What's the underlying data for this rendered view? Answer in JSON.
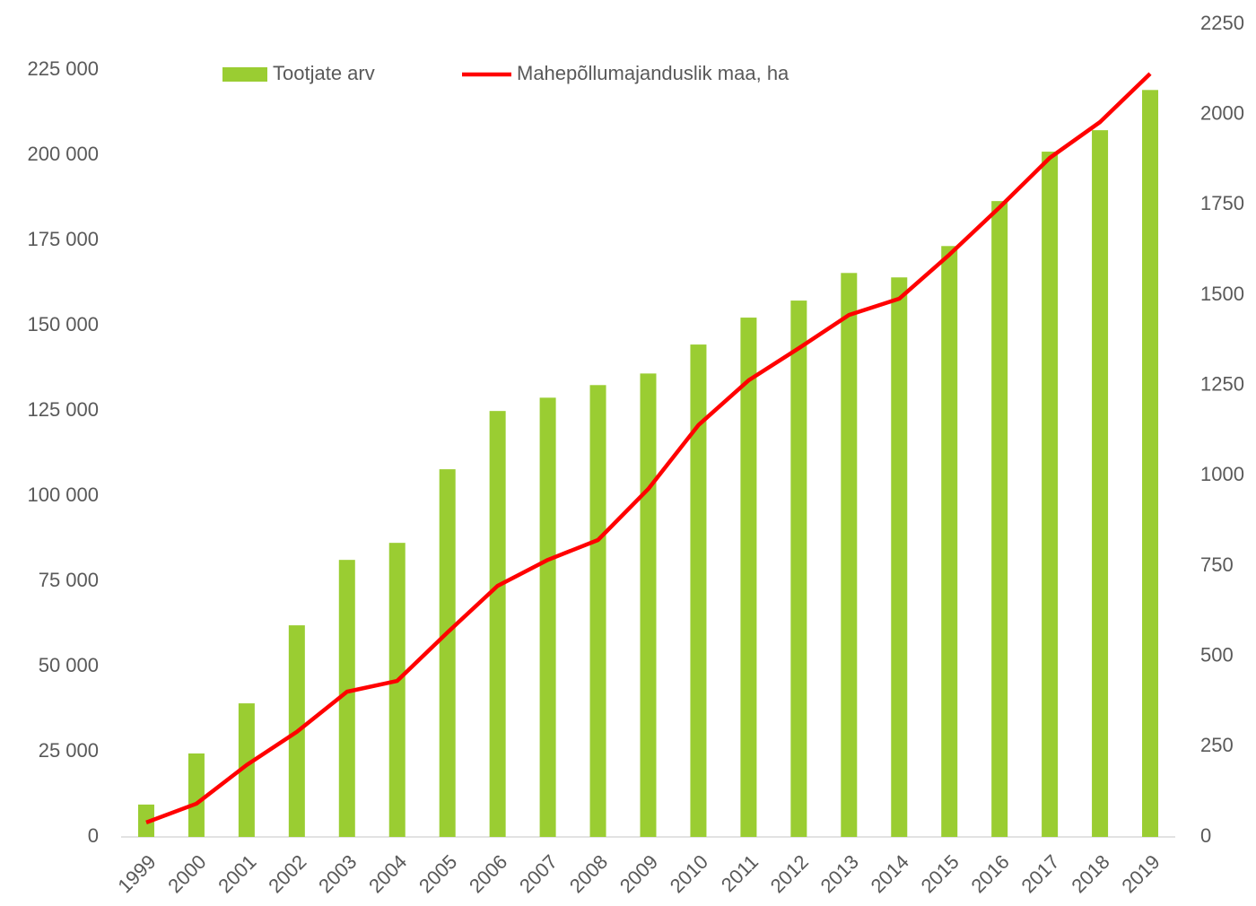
{
  "chart_data": {
    "type": "bar-line",
    "categories": [
      "1999",
      "2000",
      "2001",
      "2002",
      "2003",
      "2004",
      "2005",
      "2006",
      "2007",
      "2008",
      "2009",
      "2010",
      "2011",
      "2012",
      "2013",
      "2014",
      "2015",
      "2016",
      "2017",
      "2018",
      "2019"
    ],
    "series": [
      {
        "name": "Tootjate arv",
        "type": "bar",
        "color": "#9acd32",
        "axis": "y",
        "values": [
          9500,
          24500,
          39200,
          62100,
          81300,
          86300,
          107900,
          125000,
          128900,
          132600,
          136000,
          144500,
          152400,
          157400,
          165500,
          164200,
          173400,
          186600,
          201100,
          207400,
          219200
        ]
      },
      {
        "name": "Mahepõllumajanduslik maa, ha",
        "type": "line",
        "color": "#ff0000",
        "axis": "y2",
        "values": [
          40,
          92,
          199,
          291,
          402,
          432,
          566,
          695,
          767,
          822,
          963,
          1140,
          1264,
          1353,
          1445,
          1490,
          1612,
          1743,
          1880,
          1979,
          2113
        ]
      }
    ],
    "ylim": [
      0,
      238500
    ],
    "yticks": [
      {
        "value": 0,
        "label": "0"
      },
      {
        "value": 25000,
        "label": "25 000"
      },
      {
        "value": 50000,
        "label": "50 000"
      },
      {
        "value": 75000,
        "label": "75 000"
      },
      {
        "value": 100000,
        "label": "100 000"
      },
      {
        "value": 125000,
        "label": "125 000"
      },
      {
        "value": 150000,
        "label": "150 000"
      },
      {
        "value": 175000,
        "label": "175 000"
      },
      {
        "value": 200000,
        "label": "200 000"
      },
      {
        "value": 225000,
        "label": "225 000"
      }
    ],
    "y2lim": [
      0,
      2250
    ],
    "y2ticks": [
      0,
      250,
      500,
      750,
      1000,
      1250,
      1500,
      1750,
      2000,
      2250
    ],
    "legend": "top"
  }
}
